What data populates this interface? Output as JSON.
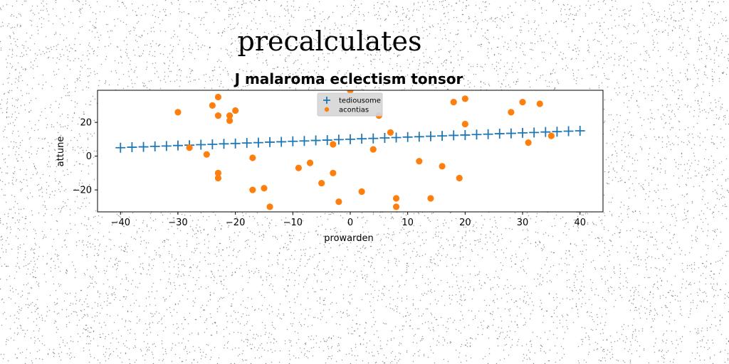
{
  "page_title": "precalculates",
  "chart_data": {
    "type": "scatter",
    "title": "J malaroma eclectism tonsor",
    "xlabel": "prowarden",
    "ylabel": "attune",
    "xlim": [
      -44,
      44
    ],
    "ylim": [
      -33,
      39
    ],
    "xticks": [
      -40,
      -30,
      -20,
      -10,
      0,
      10,
      20,
      30,
      40
    ],
    "xtick_labels": [
      "−40",
      "−30",
      "−20",
      "−10",
      "0",
      "10",
      "20",
      "30",
      "40"
    ],
    "yticks": [
      -20,
      0,
      20
    ],
    "ytick_labels": [
      "−20",
      "0",
      "20"
    ],
    "grid": false,
    "legend_position": "top-center",
    "series": [
      {
        "name": "tediousome",
        "marker": "plus",
        "color": "#1f77b4",
        "points": [
          [
            -40,
            5.0
          ],
          [
            -38,
            5.3
          ],
          [
            -36,
            5.5
          ],
          [
            -34,
            5.8
          ],
          [
            -32,
            6.0
          ],
          [
            -30,
            6.3
          ],
          [
            -28,
            6.5
          ],
          [
            -26,
            6.8
          ],
          [
            -24,
            7.0
          ],
          [
            -22,
            7.3
          ],
          [
            -20,
            7.5
          ],
          [
            -18,
            7.8
          ],
          [
            -16,
            8.0
          ],
          [
            -14,
            8.3
          ],
          [
            -12,
            8.5
          ],
          [
            -10,
            8.8
          ],
          [
            -8,
            9.0
          ],
          [
            -6,
            9.3
          ],
          [
            -4,
            9.5
          ],
          [
            -2,
            9.8
          ],
          [
            0,
            10.0
          ],
          [
            2,
            10.3
          ],
          [
            4,
            10.5
          ],
          [
            6,
            10.8
          ],
          [
            8,
            11.0
          ],
          [
            10,
            11.3
          ],
          [
            12,
            11.5
          ],
          [
            14,
            11.8
          ],
          [
            16,
            12.0
          ],
          [
            18,
            12.3
          ],
          [
            20,
            12.5
          ],
          [
            22,
            12.8
          ],
          [
            24,
            13.0
          ],
          [
            26,
            13.3
          ],
          [
            28,
            13.5
          ],
          [
            30,
            13.8
          ],
          [
            32,
            14.0
          ],
          [
            34,
            14.3
          ],
          [
            36,
            14.5
          ],
          [
            38,
            14.8
          ],
          [
            40,
            15.0
          ]
        ]
      },
      {
        "name": "acontias",
        "marker": "circle",
        "color": "#ff7f0e",
        "points": [
          [
            -30,
            26
          ],
          [
            -28,
            5
          ],
          [
            -25,
            1
          ],
          [
            -24,
            30
          ],
          [
            -23,
            35
          ],
          [
            -23,
            24
          ],
          [
            -23,
            -10
          ],
          [
            -23,
            -13
          ],
          [
            -21,
            24
          ],
          [
            -21,
            21
          ],
          [
            -20,
            27
          ],
          [
            -17,
            -1
          ],
          [
            -17,
            -20
          ],
          [
            -15,
            -19
          ],
          [
            -14,
            -30
          ],
          [
            -9,
            -7
          ],
          [
            -7,
            -4
          ],
          [
            -5,
            -16
          ],
          [
            -3,
            7
          ],
          [
            -3,
            -10
          ],
          [
            -2,
            -27
          ],
          [
            0,
            39
          ],
          [
            2,
            -21
          ],
          [
            4,
            4
          ],
          [
            5,
            24
          ],
          [
            7,
            14
          ],
          [
            8,
            -25
          ],
          [
            8,
            -30
          ],
          [
            12,
            -3
          ],
          [
            14,
            -25
          ],
          [
            16,
            -6
          ],
          [
            18,
            32
          ],
          [
            19,
            -13
          ],
          [
            20,
            34
          ],
          [
            20,
            19
          ],
          [
            28,
            26
          ],
          [
            30,
            32
          ],
          [
            31,
            8
          ],
          [
            33,
            31
          ],
          [
            35,
            12
          ]
        ]
      }
    ]
  }
}
